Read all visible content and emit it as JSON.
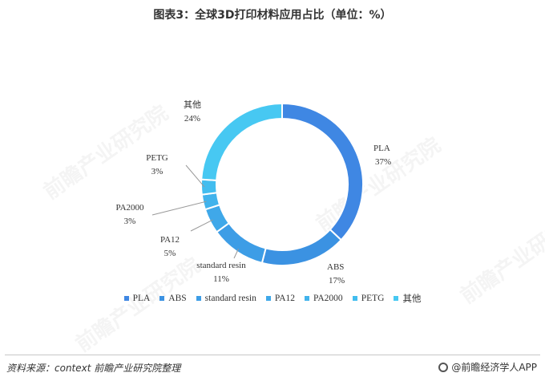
{
  "chart_data": {
    "type": "pie",
    "title": "图表3：全球3D打印材料应用占比（单位：%）",
    "categories": [
      "PLA",
      "ABS",
      "standard resin",
      "PA12",
      "PA2000",
      "PETG",
      "其他"
    ],
    "values": [
      37,
      17,
      11,
      5,
      3,
      3,
      24
    ],
    "value_labels": [
      "37%",
      "17%",
      "11%",
      "5%",
      "3%",
      "3%",
      "24%"
    ],
    "donut": true,
    "legend_position": "bottom",
    "colors": [
      "#3f87e3",
      "#3b92e2",
      "#3d9de6",
      "#3fa8e9",
      "#41b3ec",
      "#42bdef",
      "#47c8f2"
    ]
  },
  "footer": {
    "source": "资料来源：context   前瞻产业研究院整理",
    "brand": "@前瞻经济学人APP"
  },
  "watermark": "前瞻产业研究院"
}
